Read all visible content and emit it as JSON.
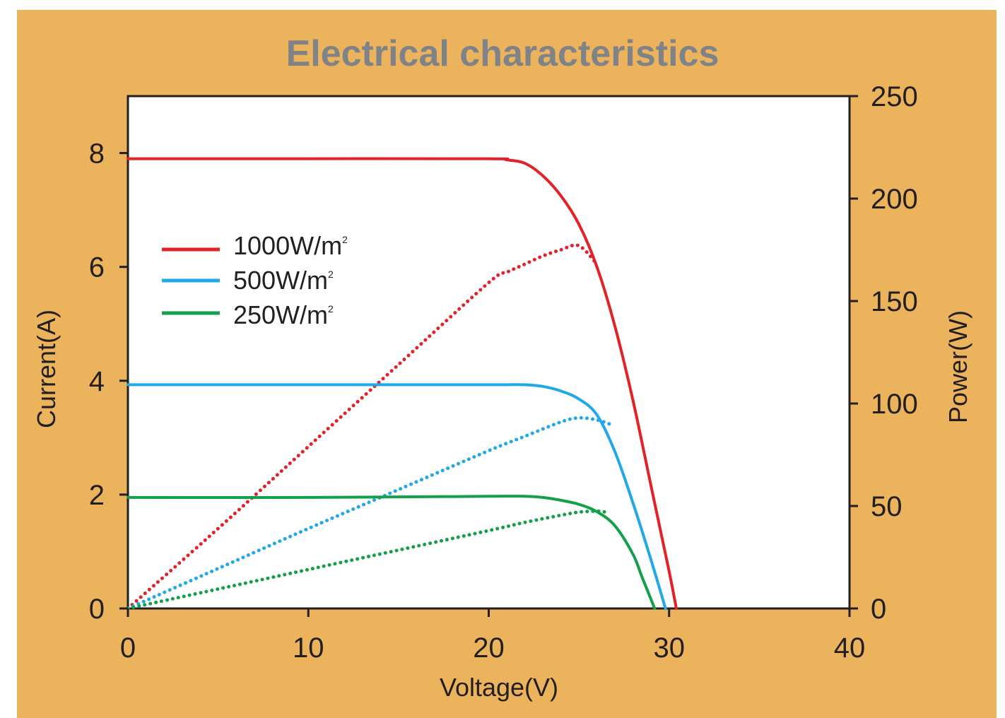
{
  "chart_data": {
    "type": "line",
    "title": "Electrical characteristics",
    "xlabel": "Voltage(V)",
    "ylabel": "Current(A)",
    "y2label": "Power(W)",
    "xlim": [
      0,
      40
    ],
    "ylim": [
      0,
      9
    ],
    "y2lim": [
      0,
      250
    ],
    "x_ticks": [
      "0",
      "10",
      "20",
      "30",
      "40"
    ],
    "y_ticks": [
      "0",
      "2",
      "4",
      "6",
      "8"
    ],
    "y2_ticks": [
      "0",
      "50",
      "100",
      "150",
      "200",
      "250"
    ],
    "legend": {
      "position": "upper-left"
    },
    "colors": {
      "1000": "#e32227",
      "500": "#20a8e8",
      "250": "#12a04a"
    },
    "series": [
      {
        "name": "1000W/m²",
        "kind": "current",
        "axis": "left",
        "color": "#e32227",
        "x": [
          0,
          10,
          20,
          21,
          22,
          23,
          24,
          25,
          26,
          27,
          28,
          29,
          30,
          30.4
        ],
        "y": [
          7.9,
          7.9,
          7.9,
          7.88,
          7.82,
          7.6,
          7.25,
          6.75,
          6.0,
          4.95,
          3.65,
          2.15,
          0.65,
          0
        ]
      },
      {
        "name": "1000W/m²",
        "kind": "power",
        "axis": "right",
        "color": "#e32227",
        "x": [
          0,
          5,
          10,
          15,
          20,
          21,
          22,
          23,
          24,
          25,
          26
        ],
        "y": [
          0,
          39,
          79,
          119,
          159,
          164,
          168,
          172,
          175,
          177,
          168
        ]
      },
      {
        "name": "500W/m²",
        "kind": "current",
        "axis": "left",
        "color": "#20a8e8",
        "x": [
          0,
          10,
          20,
          21,
          22,
          23,
          24,
          25,
          26,
          27,
          28,
          29,
          29.8
        ],
        "y": [
          3.93,
          3.93,
          3.93,
          3.93,
          3.93,
          3.9,
          3.82,
          3.68,
          3.4,
          2.75,
          1.85,
          0.85,
          0
        ]
      },
      {
        "name": "500W/m²",
        "kind": "power",
        "axis": "right",
        "color": "#20a8e8",
        "x": [
          0,
          5,
          10,
          15,
          20,
          22,
          24,
          25,
          26,
          26.7
        ],
        "y": [
          0,
          19.5,
          39,
          58,
          77,
          84,
          91,
          93,
          92,
          90
        ]
      },
      {
        "name": "250W/m²",
        "kind": "current",
        "axis": "left",
        "color": "#12a04a",
        "x": [
          0,
          10,
          20,
          22,
          23,
          24,
          25,
          26,
          27,
          28,
          28.5,
          29.2
        ],
        "y": [
          1.95,
          1.95,
          1.97,
          1.97,
          1.95,
          1.9,
          1.83,
          1.7,
          1.45,
          0.95,
          0.55,
          0
        ]
      },
      {
        "name": "250W/m²",
        "kind": "power",
        "axis": "right",
        "color": "#12a04a",
        "x": [
          0,
          5,
          10,
          15,
          20,
          22,
          24,
          25,
          26,
          26.5
        ],
        "y": [
          0,
          9.5,
          19,
          28.5,
          38,
          42,
          45.5,
          47,
          47.5,
          47
        ]
      }
    ]
  },
  "legend": {
    "items": [
      {
        "label": "1000W/m",
        "sup": "2",
        "color": "#e32227"
      },
      {
        "label": "500W/m",
        "sup": "2",
        "color": "#20a8e8"
      },
      {
        "label": "250W/m",
        "sup": "2",
        "color": "#12a04a"
      }
    ]
  }
}
